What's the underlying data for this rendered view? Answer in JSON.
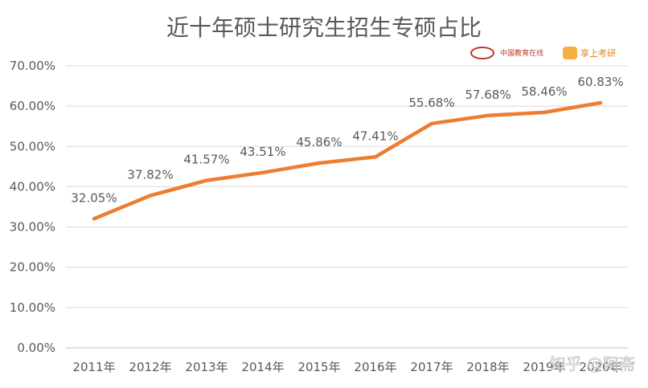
{
  "chart_data": {
    "type": "line",
    "title": "近十年硕士研究生招生专硕占比",
    "categories": [
      "2011年",
      "2012年",
      "2013年",
      "2014年",
      "2015年",
      "2016年",
      "2017年",
      "2018年",
      "2019年",
      "2020年"
    ],
    "series": [
      {
        "values": [
          32.05,
          37.82,
          41.57,
          43.51,
          45.86,
          47.41,
          55.68,
          57.68,
          58.46,
          60.83
        ],
        "labels": [
          "32.05%",
          "37.82%",
          "41.57%",
          "43.51%",
          "45.86%",
          "47.41%",
          "55.68%",
          "57.68%",
          "58.46%",
          "60.83%"
        ],
        "color": "#ED7D31"
      }
    ],
    "ylim": [
      0,
      70
    ],
    "yticks": [
      "0.00%",
      "10.00%",
      "20.00%",
      "30.00%",
      "40.00%",
      "50.00%",
      "60.00%",
      "70.00%"
    ],
    "grid": true,
    "legend": "none"
  },
  "logos": {
    "left": "中国教育在线",
    "right": "享上考研"
  },
  "watermark": "知乎 @阿斋"
}
